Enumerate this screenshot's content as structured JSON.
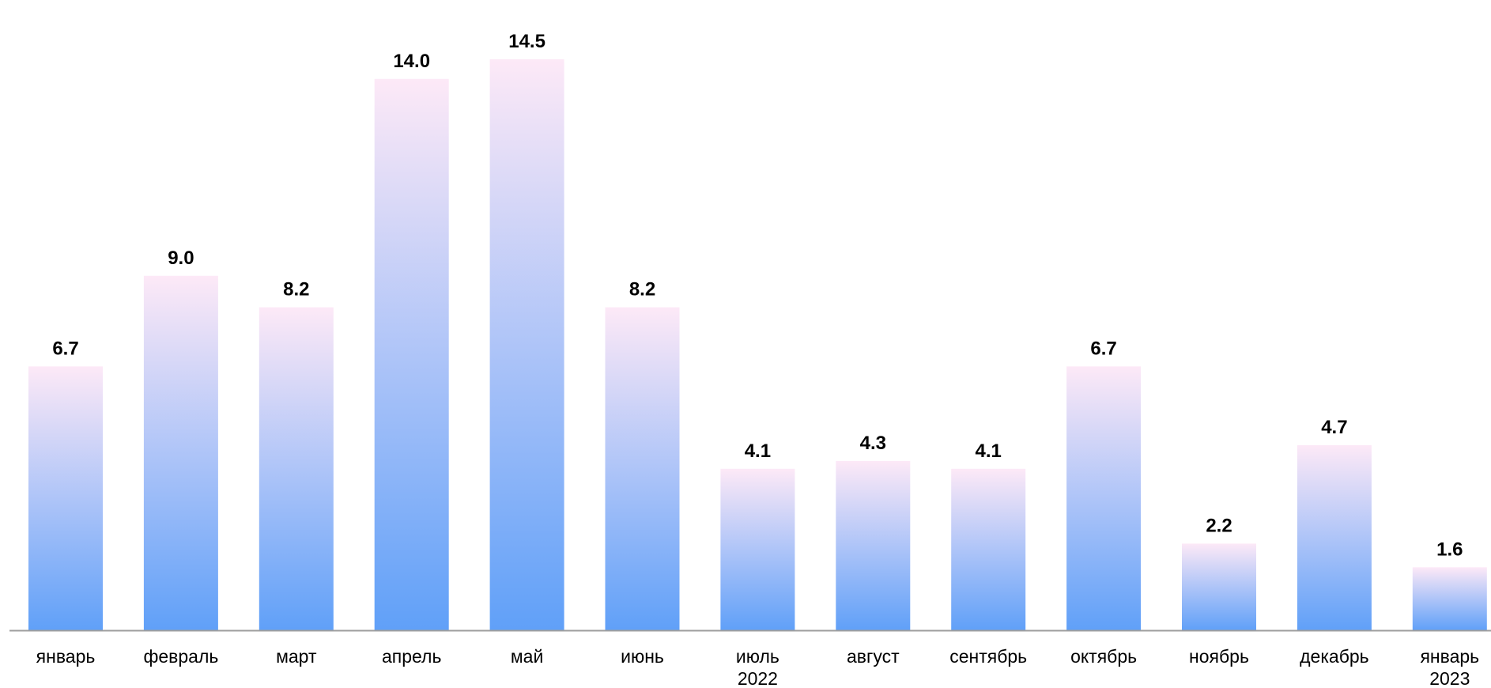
{
  "chart_data": {
    "type": "bar",
    "title": "",
    "xlabel": "",
    "ylabel": "",
    "ylim": [
      0,
      15
    ],
    "grid": false,
    "legend": "none",
    "categories": [
      [
        "январь"
      ],
      [
        "февраль"
      ],
      [
        "март"
      ],
      [
        "апрель"
      ],
      [
        "май"
      ],
      [
        "июнь"
      ],
      [
        "июль",
        "2022"
      ],
      [
        "август"
      ],
      [
        "сентябрь"
      ],
      [
        "октябрь"
      ],
      [
        "ноябрь"
      ],
      [
        "декабрь"
      ],
      [
        "январь",
        "2023"
      ]
    ],
    "values": [
      6.7,
      9.0,
      8.2,
      14.0,
      14.5,
      8.2,
      4.1,
      4.3,
      4.1,
      6.7,
      2.2,
      4.7,
      1.6
    ],
    "value_labels": [
      "6.7",
      "9.0",
      "8.2",
      "14.0",
      "14.5",
      "8.2",
      "4.1",
      "4.3",
      "4.1",
      "6.7",
      "2.2",
      "4.7",
      "1.6"
    ],
    "colors": {
      "bar_top": "#fde9f7",
      "bar_bottom": "#60a0f8",
      "axis": "#9e9e9e"
    }
  }
}
